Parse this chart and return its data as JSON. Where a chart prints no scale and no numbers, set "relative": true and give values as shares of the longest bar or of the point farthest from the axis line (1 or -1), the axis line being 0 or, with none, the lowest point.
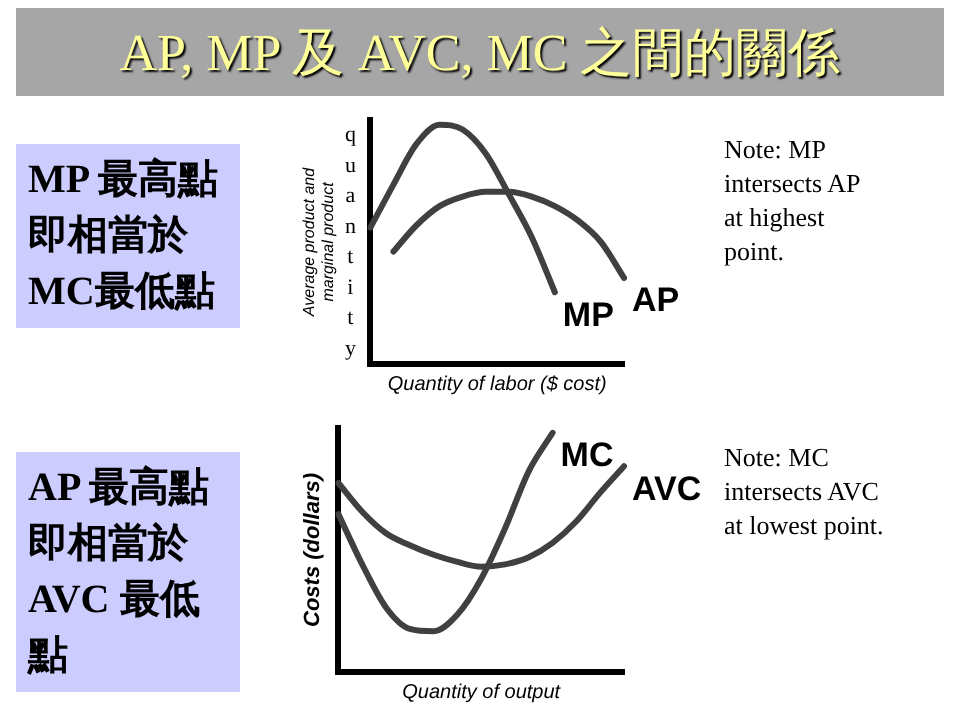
{
  "chart_data": [
    {
      "type": "line",
      "title": "AP, MP 及 AVC, MC 之間的關係",
      "xlabel": "Quantity of labor ($ cost)",
      "ylabel": "Average product and marginal product",
      "relative": true,
      "categories": [
        null,
        null,
        null,
        null,
        null,
        null,
        null,
        null,
        null,
        null,
        null,
        null
      ],
      "series": [
        {
          "name": "MP",
          "color": "#404040",
          "values": [
            0.57,
            0.75,
            0.92,
            1.0,
            0.98,
            0.88,
            0.71,
            0.53,
            0.3,
            null,
            null,
            null
          ]
        },
        {
          "name": "AP",
          "color": "#404040",
          "values": [
            null,
            0.47,
            0.58,
            0.66,
            0.7,
            0.72,
            0.72,
            0.7,
            0.66,
            0.6,
            0.51,
            0.36
          ]
        }
      ],
      "annotations": [
        "MP 最高點即相當於MC最低點",
        "Note: MP intersects AP at highest point.",
        "quantity"
      ]
    },
    {
      "type": "line",
      "xlabel": "Quantity of output",
      "ylabel": "Costs (dollars)",
      "relative": true,
      "categories": [
        null,
        null,
        null,
        null,
        null,
        null,
        null,
        null,
        null,
        null,
        null,
        null,
        null
      ],
      "series": [
        {
          "name": "MC",
          "color": "#404040",
          "values": [
            0.66,
            0.45,
            0.27,
            0.18,
            0.17,
            0.24,
            0.39,
            0.6,
            0.84,
            1.0,
            null,
            null,
            null
          ]
        },
        {
          "name": "AVC",
          "color": "#404040",
          "values": [
            0.79,
            0.67,
            0.58,
            0.53,
            0.49,
            0.46,
            0.44,
            0.45,
            0.48,
            0.54,
            0.63,
            0.75,
            0.86
          ]
        }
      ],
      "annotations": [
        "AP 最高點即相當於AVC 最低點",
        "Note: MC intersects AVC at lowest point."
      ]
    }
  ]
}
